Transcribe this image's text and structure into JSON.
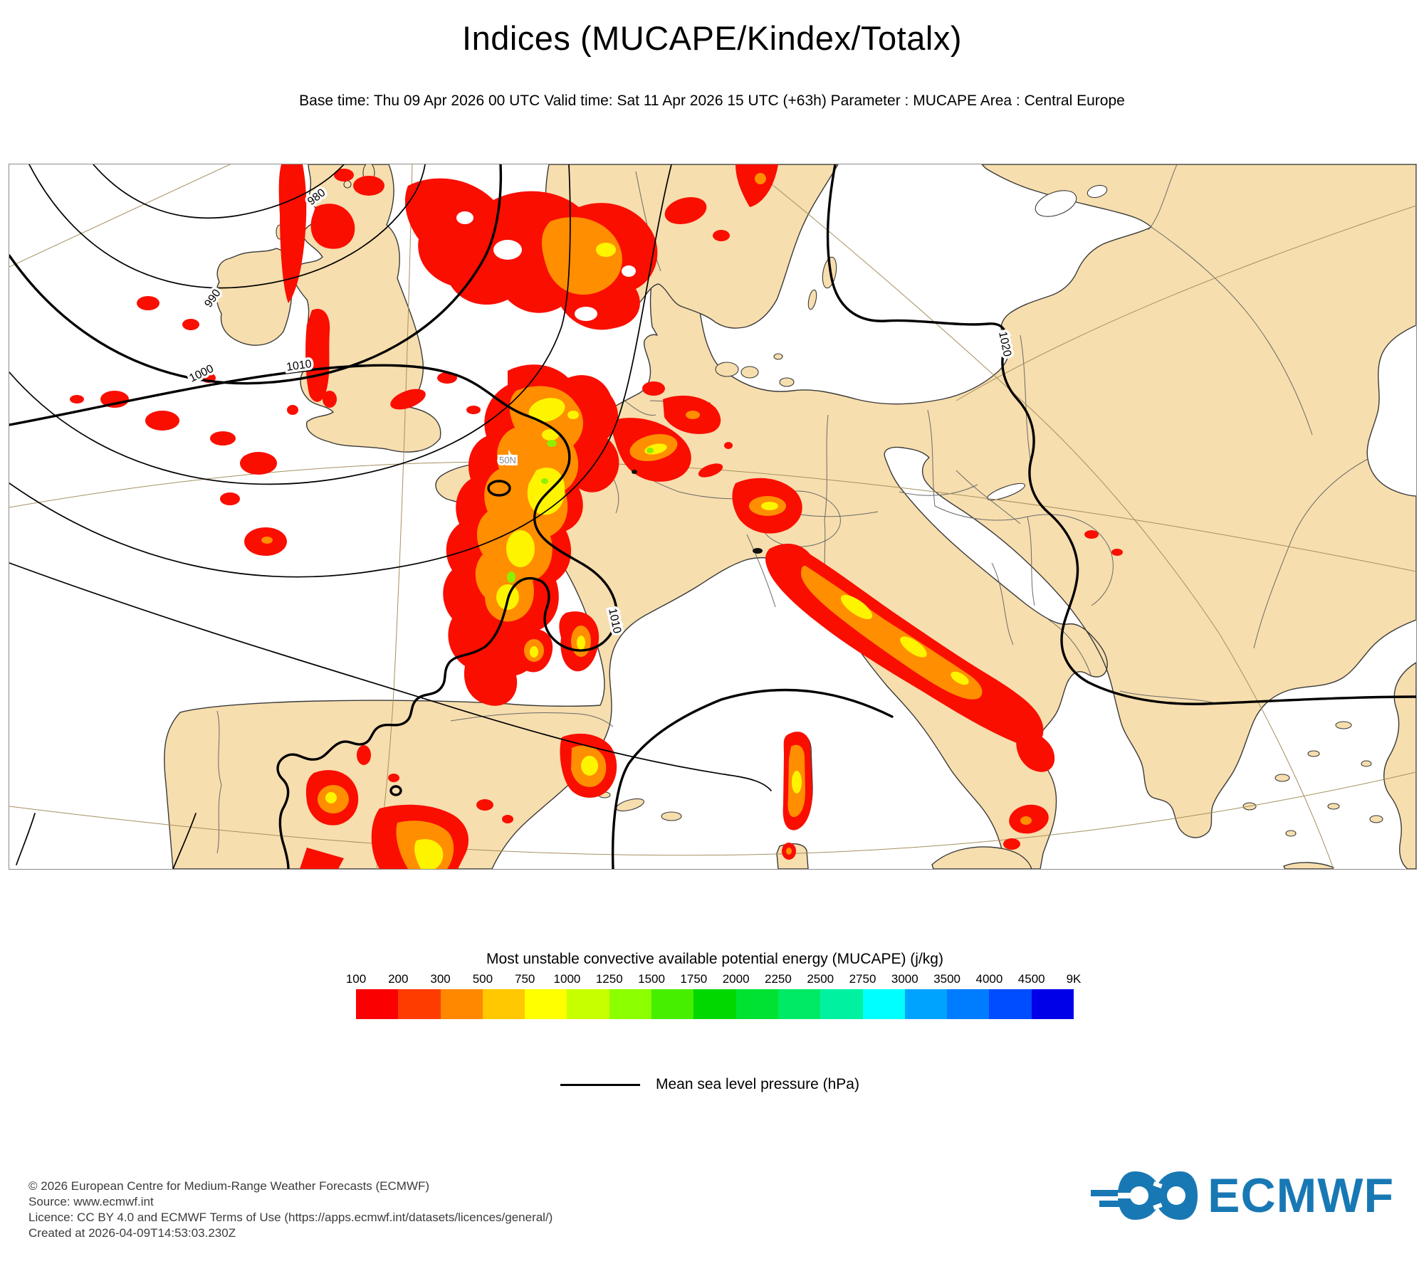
{
  "header": {
    "title": "Indices (MUCAPE/Kindex/Totalx)",
    "subtitle": "Base time: Thu 09 Apr 2026 00 UTC Valid time: Sat 11 Apr 2026 15 UTC (+63h) Parameter : MUCAPE Area : Central Europe"
  },
  "map": {
    "isobar_labels": {
      "i980": "980",
      "i990": "990",
      "i1000": "1000",
      "i1010_a": "1010",
      "i1010_b": "1010",
      "i1020": "1020"
    },
    "graticule_label_50n": "50N",
    "colors": {
      "land": "#f7deae",
      "sea": "#ffffff",
      "coast": "#3a3a3a",
      "border": "#6a6a6a",
      "graticule": "#a6905f",
      "isobar": "#000000",
      "mucape_red": "#fa0e00",
      "mucape_orange": "#ff8e00",
      "mucape_yellow": "#fff400",
      "mucape_green": "#8ef000"
    }
  },
  "legend": {
    "title": "Most unstable convective available potential energy (MUCAPE) (j/kg)",
    "ticks": [
      "100",
      "200",
      "300",
      "500",
      "750",
      "1000",
      "1250",
      "1500",
      "1750",
      "2000",
      "2250",
      "2500",
      "2750",
      "3000",
      "3500",
      "4000",
      "4500",
      "9K"
    ],
    "colors": [
      "#fa0000",
      "#ff3c00",
      "#ff8800",
      "#ffc800",
      "#ffff00",
      "#c8ff00",
      "#8cff00",
      "#46ee00",
      "#00d800",
      "#00e232",
      "#00ea66",
      "#00f2a0",
      "#00ffff",
      "#00a4ff",
      "#007cff",
      "#004cff",
      "#0000e8"
    ]
  },
  "mslp_legend": {
    "label": "Mean sea level pressure (hPa)"
  },
  "footer": {
    "lines": [
      "© 2026 European Centre for Medium-Range Weather Forecasts (ECMWF)",
      "Source: www.ecmwf.int",
      "Licence: CC BY 4.0 and ECMWF Terms of Use (https://apps.ecmwf.int/datasets/licences/general/)",
      "Created at 2026-04-09T14:53:03.230Z"
    ]
  },
  "logo": {
    "text": "ECMWF",
    "color": "#1878b4"
  }
}
